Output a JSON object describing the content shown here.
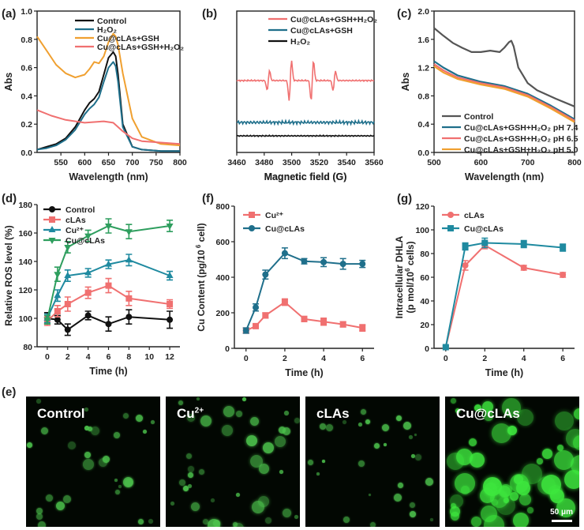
{
  "chart_data": [
    {
      "panel": "(a)",
      "type": "line",
      "xlabel": "Wavelength (nm)",
      "ylabel": "Abs",
      "xlim": [
        500,
        800
      ],
      "ylim": [
        0,
        1.0
      ],
      "xticks": [
        550,
        600,
        650,
        700,
        750,
        800
      ],
      "yticks": [
        0.0,
        0.2,
        0.4,
        0.6,
        0.8,
        1.0
      ],
      "legend": "top-right",
      "series": [
        {
          "name": "Control",
          "color": "#111111",
          "x": [
            500,
            520,
            540,
            560,
            580,
            600,
            610,
            620,
            630,
            640,
            650,
            660,
            665,
            670,
            680,
            700,
            720,
            760,
            800
          ],
          "y": [
            0.02,
            0.04,
            0.06,
            0.1,
            0.18,
            0.3,
            0.35,
            0.38,
            0.43,
            0.55,
            0.67,
            0.71,
            0.68,
            0.55,
            0.2,
            0.04,
            0.02,
            0.01,
            0.01
          ]
        },
        {
          "name": "H2O2",
          "color": "#1f6f8b",
          "x": [
            500,
            520,
            540,
            560,
            580,
            600,
            610,
            620,
            630,
            640,
            650,
            660,
            665,
            670,
            680,
            700,
            720,
            760,
            800
          ],
          "y": [
            0.02,
            0.03,
            0.05,
            0.09,
            0.16,
            0.27,
            0.31,
            0.34,
            0.39,
            0.5,
            0.6,
            0.64,
            0.61,
            0.5,
            0.18,
            0.04,
            0.02,
            0.01,
            0.01
          ]
        },
        {
          "name": "Cu@cLAs+GSH",
          "color": "#f0a030",
          "x": [
            500,
            520,
            540,
            560,
            580,
            600,
            610,
            620,
            630,
            640,
            650,
            660,
            665,
            670,
            680,
            700,
            720,
            760,
            800
          ],
          "y": [
            0.82,
            0.72,
            0.62,
            0.56,
            0.53,
            0.55,
            0.59,
            0.64,
            0.63,
            0.68,
            0.78,
            0.84,
            0.82,
            0.76,
            0.56,
            0.24,
            0.11,
            0.06,
            0.05
          ]
        },
        {
          "name": "Cu@cLAs+GSH+H2O2",
          "color": "#f07070",
          "x": [
            500,
            530,
            560,
            600,
            640,
            660,
            680,
            700,
            720,
            760,
            800
          ],
          "y": [
            0.3,
            0.26,
            0.23,
            0.21,
            0.22,
            0.21,
            0.15,
            0.1,
            0.08,
            0.07,
            0.06
          ]
        }
      ]
    },
    {
      "panel": "(b)",
      "type": "line",
      "xlabel": "Magnetic field (G)",
      "ylabel": "",
      "xlim": [
        3460,
        3560
      ],
      "xticks": [
        3460,
        3480,
        3500,
        3520,
        3540,
        3560
      ],
      "legend": "top-right",
      "series": [
        {
          "name": "Cu@cLAs+GSH+H2O2",
          "color": "#f07070"
        },
        {
          "name": "Cu@cLAs+GSH",
          "color": "#1f6f8b"
        },
        {
          "name": "H2O2",
          "color": "#111111"
        }
      ]
    },
    {
      "panel": "(c)",
      "type": "line",
      "xlabel": "Wavelength (nm)",
      "ylabel": "Abs",
      "xlim": [
        500,
        800
      ],
      "ylim": [
        0.0,
        2.0
      ],
      "xticks": [
        500,
        600,
        700,
        800
      ],
      "yticks": [
        0.0,
        0.4,
        0.8,
        1.2,
        1.6,
        2.0
      ],
      "legend": "bottom-right",
      "series": [
        {
          "name": "Control",
          "color": "#555555",
          "x": [
            500,
            520,
            540,
            560,
            580,
            600,
            620,
            640,
            650,
            660,
            665,
            670,
            680,
            700,
            720,
            760,
            800
          ],
          "y": [
            1.76,
            1.65,
            1.55,
            1.48,
            1.42,
            1.42,
            1.44,
            1.42,
            1.48,
            1.56,
            1.58,
            1.5,
            1.2,
            0.98,
            0.88,
            0.76,
            0.65
          ]
        },
        {
          "name": "Cu@cLAs+GSH+H2O2 pH 7.4",
          "color": "#1f6f8b",
          "x": [
            500,
            520,
            550,
            600,
            650,
            700,
            750,
            800
          ],
          "y": [
            1.29,
            1.2,
            1.09,
            1.0,
            0.94,
            0.83,
            0.66,
            0.47
          ]
        },
        {
          "name": "Cu@cLAs+GSH+H2O2 pH 6.5",
          "color": "#f07070",
          "x": [
            500,
            520,
            550,
            600,
            650,
            700,
            750,
            800
          ],
          "y": [
            1.25,
            1.16,
            1.06,
            0.98,
            0.92,
            0.81,
            0.64,
            0.45
          ]
        },
        {
          "name": "Cu@cLAs+GSH+H2O2 pH 5.0",
          "color": "#f0a030",
          "x": [
            500,
            520,
            550,
            600,
            650,
            700,
            750,
            800
          ],
          "y": [
            1.22,
            1.13,
            1.04,
            0.96,
            0.9,
            0.79,
            0.62,
            0.43
          ]
        }
      ]
    },
    {
      "panel": "(d)",
      "type": "line",
      "xlabel": "Time (h)",
      "ylabel": "Relative ROS level (%)",
      "xlim": [
        -1,
        13
      ],
      "ylim": [
        80,
        180
      ],
      "xticks": [
        0,
        2,
        4,
        6,
        8,
        10,
        12
      ],
      "yticks": [
        80,
        100,
        120,
        140,
        160,
        180
      ],
      "legend": "top-left",
      "series": [
        {
          "name": "Control",
          "color": "#111111",
          "marker": "circle",
          "x": [
            0,
            1,
            2,
            4,
            6,
            8,
            12
          ],
          "y": [
            100,
            99,
            92,
            102,
            96,
            101,
            99
          ],
          "err": [
            4,
            3,
            4,
            3,
            5,
            5,
            6
          ]
        },
        {
          "name": "cLAs",
          "color": "#f07070",
          "marker": "square",
          "x": [
            0,
            1,
            2,
            4,
            6,
            8,
            12
          ],
          "y": [
            98,
            105,
            110,
            118,
            123,
            114,
            110
          ],
          "err": [
            3,
            4,
            5,
            4,
            5,
            5,
            3
          ]
        },
        {
          "name": "Cu2+",
          "color": "#1f8aa0",
          "marker": "triangle",
          "x": [
            0,
            1,
            2,
            4,
            6,
            8,
            12
          ],
          "y": [
            100,
            116,
            130,
            132,
            138,
            141,
            130
          ],
          "err": [
            3,
            4,
            4,
            3,
            3,
            4,
            3
          ]
        },
        {
          "name": "Cu@cLAs",
          "color": "#2e9e5e",
          "marker": "triangle-down",
          "x": [
            0,
            1,
            2,
            4,
            6,
            8,
            12
          ],
          "y": [
            99,
            131,
            150,
            158,
            165,
            161,
            165
          ],
          "err": [
            3,
            5,
            4,
            4,
            5,
            5,
            4
          ]
        }
      ]
    },
    {
      "panel": "(f)",
      "type": "line",
      "xlabel": "Time (h)",
      "ylabel": "Cu Content (pg/10 6 cell)",
      "xlim": [
        -0.6,
        6.6
      ],
      "ylim": [
        0,
        800
      ],
      "xticks": [
        0,
        2,
        4,
        6
      ],
      "yticks": [
        0,
        200,
        400,
        600,
        800
      ],
      "legend": "top-left",
      "series": [
        {
          "name": "Cu2+",
          "color": "#f07070",
          "marker": "square",
          "x": [
            0,
            0.5,
            1,
            2,
            3,
            4,
            5,
            6
          ],
          "y": [
            100,
            125,
            185,
            260,
            165,
            150,
            135,
            115
          ],
          "err": [
            15,
            12,
            15,
            18,
            15,
            20,
            15,
            18
          ]
        },
        {
          "name": "Cu@cLAs",
          "color": "#1f6f8b",
          "marker": "circle",
          "x": [
            0,
            0.5,
            1,
            2,
            3,
            4,
            5,
            6
          ],
          "y": [
            100,
            230,
            415,
            535,
            490,
            485,
            475,
            475
          ],
          "err": [
            15,
            20,
            25,
            30,
            15,
            25,
            30,
            20
          ]
        }
      ]
    },
    {
      "panel": "(g)",
      "type": "line",
      "xlabel": "Time (h)",
      "ylabel": "Intracellular DHLA (p mol/10 6 cells)",
      "xlim": [
        -0.6,
        6.6
      ],
      "ylim": [
        0,
        120
      ],
      "xticks": [
        0,
        2,
        4,
        6
      ],
      "yticks": [
        0,
        20,
        40,
        60,
        80,
        100,
        120
      ],
      "legend": "top-left",
      "series": [
        {
          "name": "cLAs",
          "color": "#f07070",
          "marker": "circle",
          "x": [
            0,
            1,
            2,
            4,
            6
          ],
          "y": [
            1,
            70,
            87,
            68,
            62
          ],
          "err": [
            1,
            4,
            3,
            2,
            2
          ]
        },
        {
          "name": "Cu@cLAs",
          "color": "#1f8aa0",
          "marker": "square",
          "x": [
            0,
            1,
            2,
            4,
            6
          ],
          "y": [
            1,
            86,
            89,
            88,
            85
          ],
          "err": [
            1,
            3,
            4,
            3,
            3
          ]
        }
      ]
    }
  ],
  "panels": {
    "a": "(a)",
    "b": "(b)",
    "c": "(c)",
    "d": "(d)",
    "e": "(e)",
    "f": "(f)",
    "g": "(g)"
  },
  "superscripts": {
    "six": "6"
  },
  "micrographs": {
    "control": "Control",
    "cu2": "Cu",
    "cu2_sup": "2+",
    "clas": "cLAs",
    "cuclas": "Cu@cLAs",
    "scale": "50 μm"
  },
  "colors": {
    "bright_green": "#3ee83e",
    "dim_green": "#4cc24c"
  }
}
